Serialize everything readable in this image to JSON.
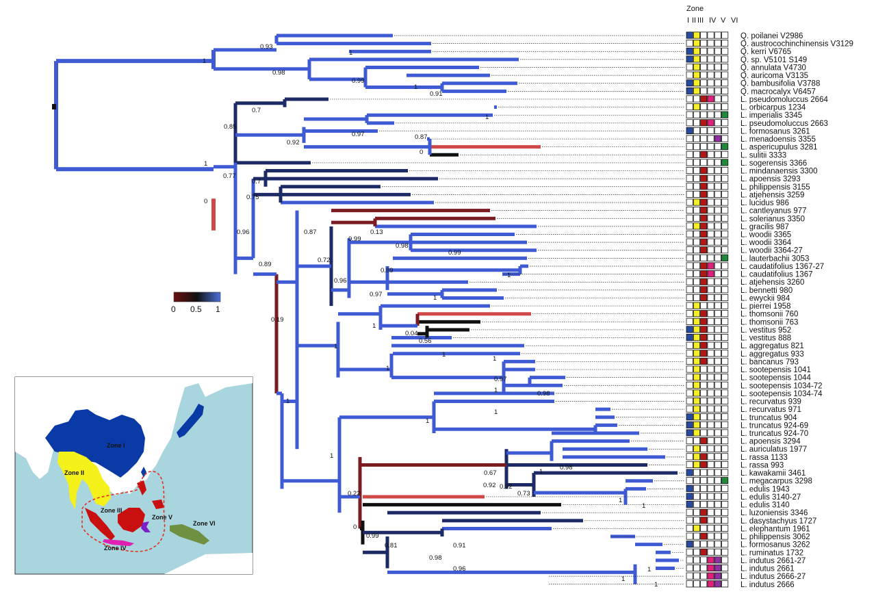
{
  "header": {
    "title": "Zone",
    "columns": [
      "I",
      "II",
      "III",
      "IV",
      "V",
      "VI"
    ]
  },
  "legend": {
    "ticks": [
      "0",
      "0.5",
      "1"
    ],
    "colors": [
      "#6b0f0f",
      "#111111",
      "#4a6fd8"
    ]
  },
  "map": {
    "labels": [
      "Zone I",
      "Zone II",
      "Zone III",
      "Zone IV",
      "Zone V",
      "Zone VI"
    ],
    "colors": {
      "sea": "#a9d5df",
      "land": "#ffffff",
      "zone1": "#0a3aa6",
      "zone2": "#f5f11a",
      "zone3": "#c81010",
      "zone4": "#e020b0",
      "zone5": "#7a22c8",
      "zone6": "#6f9040",
      "ellipse": "#e03020"
    }
  },
  "zone_colors": [
    "#2a4aa0",
    "#f5ee2a",
    "#b01818",
    "#e0207a",
    "#9030a0",
    "#1e8a3a"
  ],
  "taxa": [
    {
      "label": "Q. poilanei V2986",
      "zones": [
        1,
        1,
        0,
        0,
        0,
        0
      ]
    },
    {
      "label": "Q. austrocochinchinensis V3129",
      "zones": [
        0,
        1,
        0,
        0,
        0,
        0
      ]
    },
    {
      "label": "Q. kerri V6765",
      "zones": [
        1,
        1,
        0,
        0,
        0,
        0
      ]
    },
    {
      "label": "Q. sp. V5101 S149",
      "zones": [
        1,
        1,
        0,
        0,
        0,
        0
      ]
    },
    {
      "label": "Q. annulata V4730",
      "zones": [
        0,
        1,
        0,
        0,
        0,
        0
      ]
    },
    {
      "label": "Q. auricoma V3135",
      "zones": [
        0,
        1,
        0,
        0,
        0,
        0
      ]
    },
    {
      "label": "Q. bambusifolia V3788",
      "zones": [
        1,
        1,
        0,
        0,
        0,
        0
      ]
    },
    {
      "label": "Q. macrocalyx V6457",
      "zones": [
        1,
        1,
        0,
        0,
        0,
        0
      ]
    },
    {
      "label": "L. pseudomoluccus 2664",
      "zones": [
        0,
        0,
        1,
        1,
        0,
        0
      ]
    },
    {
      "label": "L. orbicarpus 1234",
      "zones": [
        0,
        1,
        0,
        0,
        0,
        0
      ]
    },
    {
      "label": "L. imperialis 3345",
      "zones": [
        0,
        0,
        0,
        0,
        0,
        1
      ]
    },
    {
      "label": "L. pseudomoluccus 2663",
      "zones": [
        0,
        0,
        1,
        1,
        0,
        0
      ]
    },
    {
      "label": "L. formosanus 3261",
      "zones": [
        1,
        0,
        0,
        0,
        0,
        0
      ]
    },
    {
      "label": "L. menadoensis 3355",
      "zones": [
        0,
        0,
        0,
        0,
        1,
        0
      ]
    },
    {
      "label": "L. aspericupulus 3281",
      "zones": [
        0,
        0,
        0,
        0,
        0,
        1
      ]
    },
    {
      "label": "L. sulitii 3333",
      "zones": [
        0,
        0,
        1,
        0,
        0,
        0
      ]
    },
    {
      "label": "L. sogerensis 3366",
      "zones": [
        0,
        0,
        0,
        0,
        0,
        1
      ]
    },
    {
      "label": "L. mindanaensis 3300",
      "zones": [
        0,
        0,
        1,
        0,
        0,
        0
      ]
    },
    {
      "label": "L. apoensis 3293",
      "zones": [
        0,
        0,
        1,
        0,
        0,
        0
      ]
    },
    {
      "label": "L. philippensis 3155",
      "zones": [
        0,
        0,
        1,
        0,
        0,
        0
      ]
    },
    {
      "label": "L. atjehensis 3259",
      "zones": [
        0,
        0,
        1,
        0,
        0,
        0
      ]
    },
    {
      "label": "L. lucidus 986",
      "zones": [
        0,
        1,
        1,
        0,
        0,
        0
      ]
    },
    {
      "label": "L. cantleyanus 977",
      "zones": [
        0,
        0,
        1,
        0,
        0,
        0
      ]
    },
    {
      "label": "L. solerianus 3350",
      "zones": [
        0,
        0,
        1,
        0,
        0,
        0
      ]
    },
    {
      "label": "L. gracilis 987",
      "zones": [
        0,
        1,
        1,
        0,
        0,
        0
      ]
    },
    {
      "label": "L. woodii 3365",
      "zones": [
        0,
        0,
        1,
        0,
        0,
        0
      ]
    },
    {
      "label": "L. woodii 3364",
      "zones": [
        0,
        0,
        1,
        0,
        0,
        0
      ]
    },
    {
      "label": "L. woodii 3364-27",
      "zones": [
        0,
        0,
        1,
        0,
        0,
        0
      ]
    },
    {
      "label": "L. lauterbachii 3053",
      "zones": [
        0,
        0,
        0,
        0,
        0,
        1
      ]
    },
    {
      "label": "L. caudatifolius 1367-27",
      "zones": [
        0,
        0,
        1,
        1,
        0,
        0
      ]
    },
    {
      "label": "L. caudatifolius 1367",
      "zones": [
        0,
        0,
        1,
        1,
        0,
        0
      ]
    },
    {
      "label": "L. atjehensis 3260",
      "zones": [
        0,
        0,
        1,
        0,
        0,
        0
      ]
    },
    {
      "label": "L. bennetti 980",
      "zones": [
        0,
        0,
        1,
        0,
        0,
        0
      ]
    },
    {
      "label": "L. ewyckii 984",
      "zones": [
        0,
        0,
        1,
        0,
        0,
        0
      ]
    },
    {
      "label": "L. pierrei 1958",
      "zones": [
        0,
        1,
        0,
        0,
        0,
        0
      ]
    },
    {
      "label": "L. thomsonii 760",
      "zones": [
        0,
        1,
        1,
        0,
        0,
        0
      ]
    },
    {
      "label": "L. thomsonii 763",
      "zones": [
        0,
        1,
        1,
        0,
        0,
        0
      ]
    },
    {
      "label": "L. vestitus 952",
      "zones": [
        1,
        1,
        1,
        0,
        0,
        0
      ]
    },
    {
      "label": "L. vestitus 888",
      "zones": [
        1,
        1,
        1,
        0,
        0,
        0
      ]
    },
    {
      "label": "L. aggregatus 821",
      "zones": [
        0,
        1,
        1,
        0,
        0,
        0
      ]
    },
    {
      "label": "L. aggregatus 933",
      "zones": [
        0,
        1,
        1,
        0,
        0,
        0
      ]
    },
    {
      "label": "L. bancanus 793",
      "zones": [
        0,
        1,
        1,
        0,
        0,
        0
      ]
    },
    {
      "label": "L. sootepensis 1041",
      "zones": [
        0,
        1,
        0,
        0,
        0,
        0
      ]
    },
    {
      "label": "L. sootepensis 1044",
      "zones": [
        0,
        1,
        0,
        0,
        0,
        0
      ]
    },
    {
      "label": "L. sootepensis 1034-72",
      "zones": [
        0,
        1,
        0,
        0,
        0,
        0
      ]
    },
    {
      "label": "L. sootepensis 1034-74",
      "zones": [
        0,
        1,
        0,
        0,
        0,
        0
      ]
    },
    {
      "label": "L. recurvatus 939",
      "zones": [
        0,
        1,
        0,
        0,
        0,
        0
      ]
    },
    {
      "label": "L. recurvatus 971",
      "zones": [
        0,
        1,
        0,
        0,
        0,
        0
      ]
    },
    {
      "label": "L. truncatus 904",
      "zones": [
        1,
        1,
        0,
        0,
        0,
        0
      ]
    },
    {
      "label": "L. truncatus 924-69",
      "zones": [
        1,
        1,
        0,
        0,
        0,
        0
      ]
    },
    {
      "label": "L. truncatus 924-70",
      "zones": [
        1,
        1,
        0,
        0,
        0,
        0
      ]
    },
    {
      "label": "L. apoensis 3294",
      "zones": [
        0,
        0,
        1,
        0,
        0,
        0
      ]
    },
    {
      "label": "L. auriculatus 1977",
      "zones": [
        0,
        1,
        0,
        0,
        0,
        0
      ]
    },
    {
      "label": "L. rassa 1133",
      "zones": [
        0,
        1,
        1,
        0,
        0,
        0
      ]
    },
    {
      "label": "L. rassa 993",
      "zones": [
        0,
        1,
        1,
        0,
        0,
        0
      ]
    },
    {
      "label": "L. kawakamii 3461",
      "zones": [
        1,
        0,
        0,
        0,
        0,
        0
      ]
    },
    {
      "label": "L. megacarpus 3298",
      "zones": [
        0,
        0,
        0,
        0,
        0,
        1
      ]
    },
    {
      "label": "L. edulis 1943",
      "zones": [
        1,
        0,
        0,
        0,
        0,
        0
      ]
    },
    {
      "label": "L. edulis 3140-27",
      "zones": [
        1,
        0,
        0,
        0,
        0,
        0
      ]
    },
    {
      "label": "L. edulis 3140",
      "zones": [
        1,
        0,
        0,
        0,
        0,
        0
      ]
    },
    {
      "label": "L. luzoniensis 3346",
      "zones": [
        0,
        0,
        1,
        0,
        0,
        0
      ]
    },
    {
      "label": "L. dasystachyus 1727",
      "zones": [
        0,
        0,
        1,
        0,
        0,
        0
      ]
    },
    {
      "label": "L. elephantum 1961",
      "zones": [
        0,
        1,
        0,
        0,
        0,
        0
      ]
    },
    {
      "label": "L. philippensis 3062",
      "zones": [
        0,
        0,
        1,
        0,
        0,
        0
      ]
    },
    {
      "label": "L. formosanus 3262",
      "zones": [
        1,
        0,
        0,
        0,
        0,
        0
      ]
    },
    {
      "label": "L. ruminatus 1732",
      "zones": [
        0,
        0,
        1,
        0,
        0,
        0
      ]
    },
    {
      "label": "L. indutus 2661-27",
      "zones": [
        0,
        0,
        0,
        1,
        1,
        0
      ]
    },
    {
      "label": "L. indutus 2661",
      "zones": [
        0,
        0,
        0,
        1,
        1,
        0
      ]
    },
    {
      "label": "L. indutus 2666-27",
      "zones": [
        0,
        0,
        0,
        1,
        1,
        0
      ]
    },
    {
      "label": "L. indutus 2666",
      "zones": [
        0,
        0,
        0,
        1,
        1,
        0
      ]
    }
  ],
  "support_values": [
    "0.93",
    "1",
    "1",
    "0.98",
    "0.99",
    "1",
    "0.91",
    "0.7",
    "1",
    "0.85",
    "0.97",
    "0.92",
    "0.87",
    "0",
    "1",
    "0.77",
    "0.7",
    "0",
    "0.75",
    "0.96",
    "0.87",
    "0.13",
    "0.99",
    "0.98",
    "0.99",
    "0.72",
    "0.89",
    "1",
    "0.96",
    "0.97",
    "1",
    "0.89",
    "0.19",
    "1",
    "1",
    "0.04",
    "0.56",
    "1",
    "1",
    "1",
    "0.97",
    "1",
    "0.98",
    "1",
    "1",
    "1",
    "0.92",
    "1",
    "1",
    "0.67",
    "0.98",
    "0.92",
    "0.73",
    "1",
    "1",
    "0.22",
    "0",
    "0.99",
    "0.81",
    "0.91",
    "0.98",
    "0.96",
    "1",
    "1",
    "1"
  ]
}
